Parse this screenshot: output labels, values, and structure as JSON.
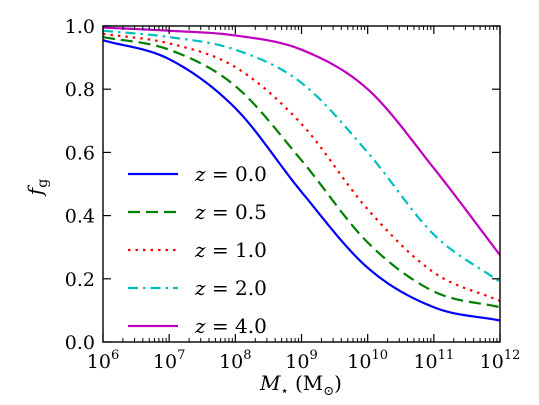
{
  "chart_data": {
    "type": "line",
    "xlabel": "M⋆ (M⊙)",
    "ylabel": "fg",
    "xscale": "log",
    "xlim": [
      1000000,
      1000000000000
    ],
    "ylim": [
      0.0,
      1.0
    ],
    "x_ticks": [
      {
        "value": 1000000,
        "base": "10",
        "exp": "6"
      },
      {
        "value": 10000000,
        "base": "10",
        "exp": "7"
      },
      {
        "value": 100000000,
        "base": "10",
        "exp": "8"
      },
      {
        "value": 1000000000,
        "base": "10",
        "exp": "9"
      },
      {
        "value": 10000000000,
        "base": "10",
        "exp": "10"
      },
      {
        "value": 100000000000,
        "base": "10",
        "exp": "11"
      },
      {
        "value": 1000000000000,
        "base": "10",
        "exp": "12"
      }
    ],
    "y_ticks": [
      {
        "value": 0.0,
        "label": "0.0"
      },
      {
        "value": 0.2,
        "label": "0.2"
      },
      {
        "value": 0.4,
        "label": "0.4"
      },
      {
        "value": 0.6,
        "label": "0.6"
      },
      {
        "value": 0.8,
        "label": "0.8"
      },
      {
        "value": 1.0,
        "label": "1.0"
      }
    ],
    "grid": false,
    "legend_position": "center-left",
    "x": [
      1000000,
      10000000,
      100000000,
      1000000000,
      10000000000,
      100000000000,
      1000000000000
    ],
    "series": [
      {
        "name": "z = 0.0",
        "z": "0.0",
        "color": "#0000ff",
        "dash": "solid",
        "values": [
          0.955,
          0.895,
          0.74,
          0.475,
          0.235,
          0.11,
          0.068
        ]
      },
      {
        "name": "z = 0.5",
        "z": "0.5",
        "color": "#007f00",
        "dash": "dashed",
        "values": [
          0.965,
          0.925,
          0.81,
          0.575,
          0.315,
          0.16,
          0.11
        ]
      },
      {
        "name": "z = 1.0",
        "z": "1.0",
        "color": "#ff0000",
        "dash": "dotted",
        "values": [
          0.975,
          0.945,
          0.87,
          0.69,
          0.42,
          0.22,
          0.13
        ]
      },
      {
        "name": "z = 2.0",
        "z": "2.0",
        "color": "#00bfbf",
        "dash": "dashdot",
        "values": [
          0.985,
          0.965,
          0.925,
          0.82,
          0.6,
          0.34,
          0.19
        ]
      },
      {
        "name": "z = 4.0",
        "z": "4.0",
        "color": "#bf00bf",
        "dash": "solid",
        "values": [
          0.995,
          0.985,
          0.97,
          0.925,
          0.8,
          0.55,
          0.275
        ]
      }
    ]
  }
}
